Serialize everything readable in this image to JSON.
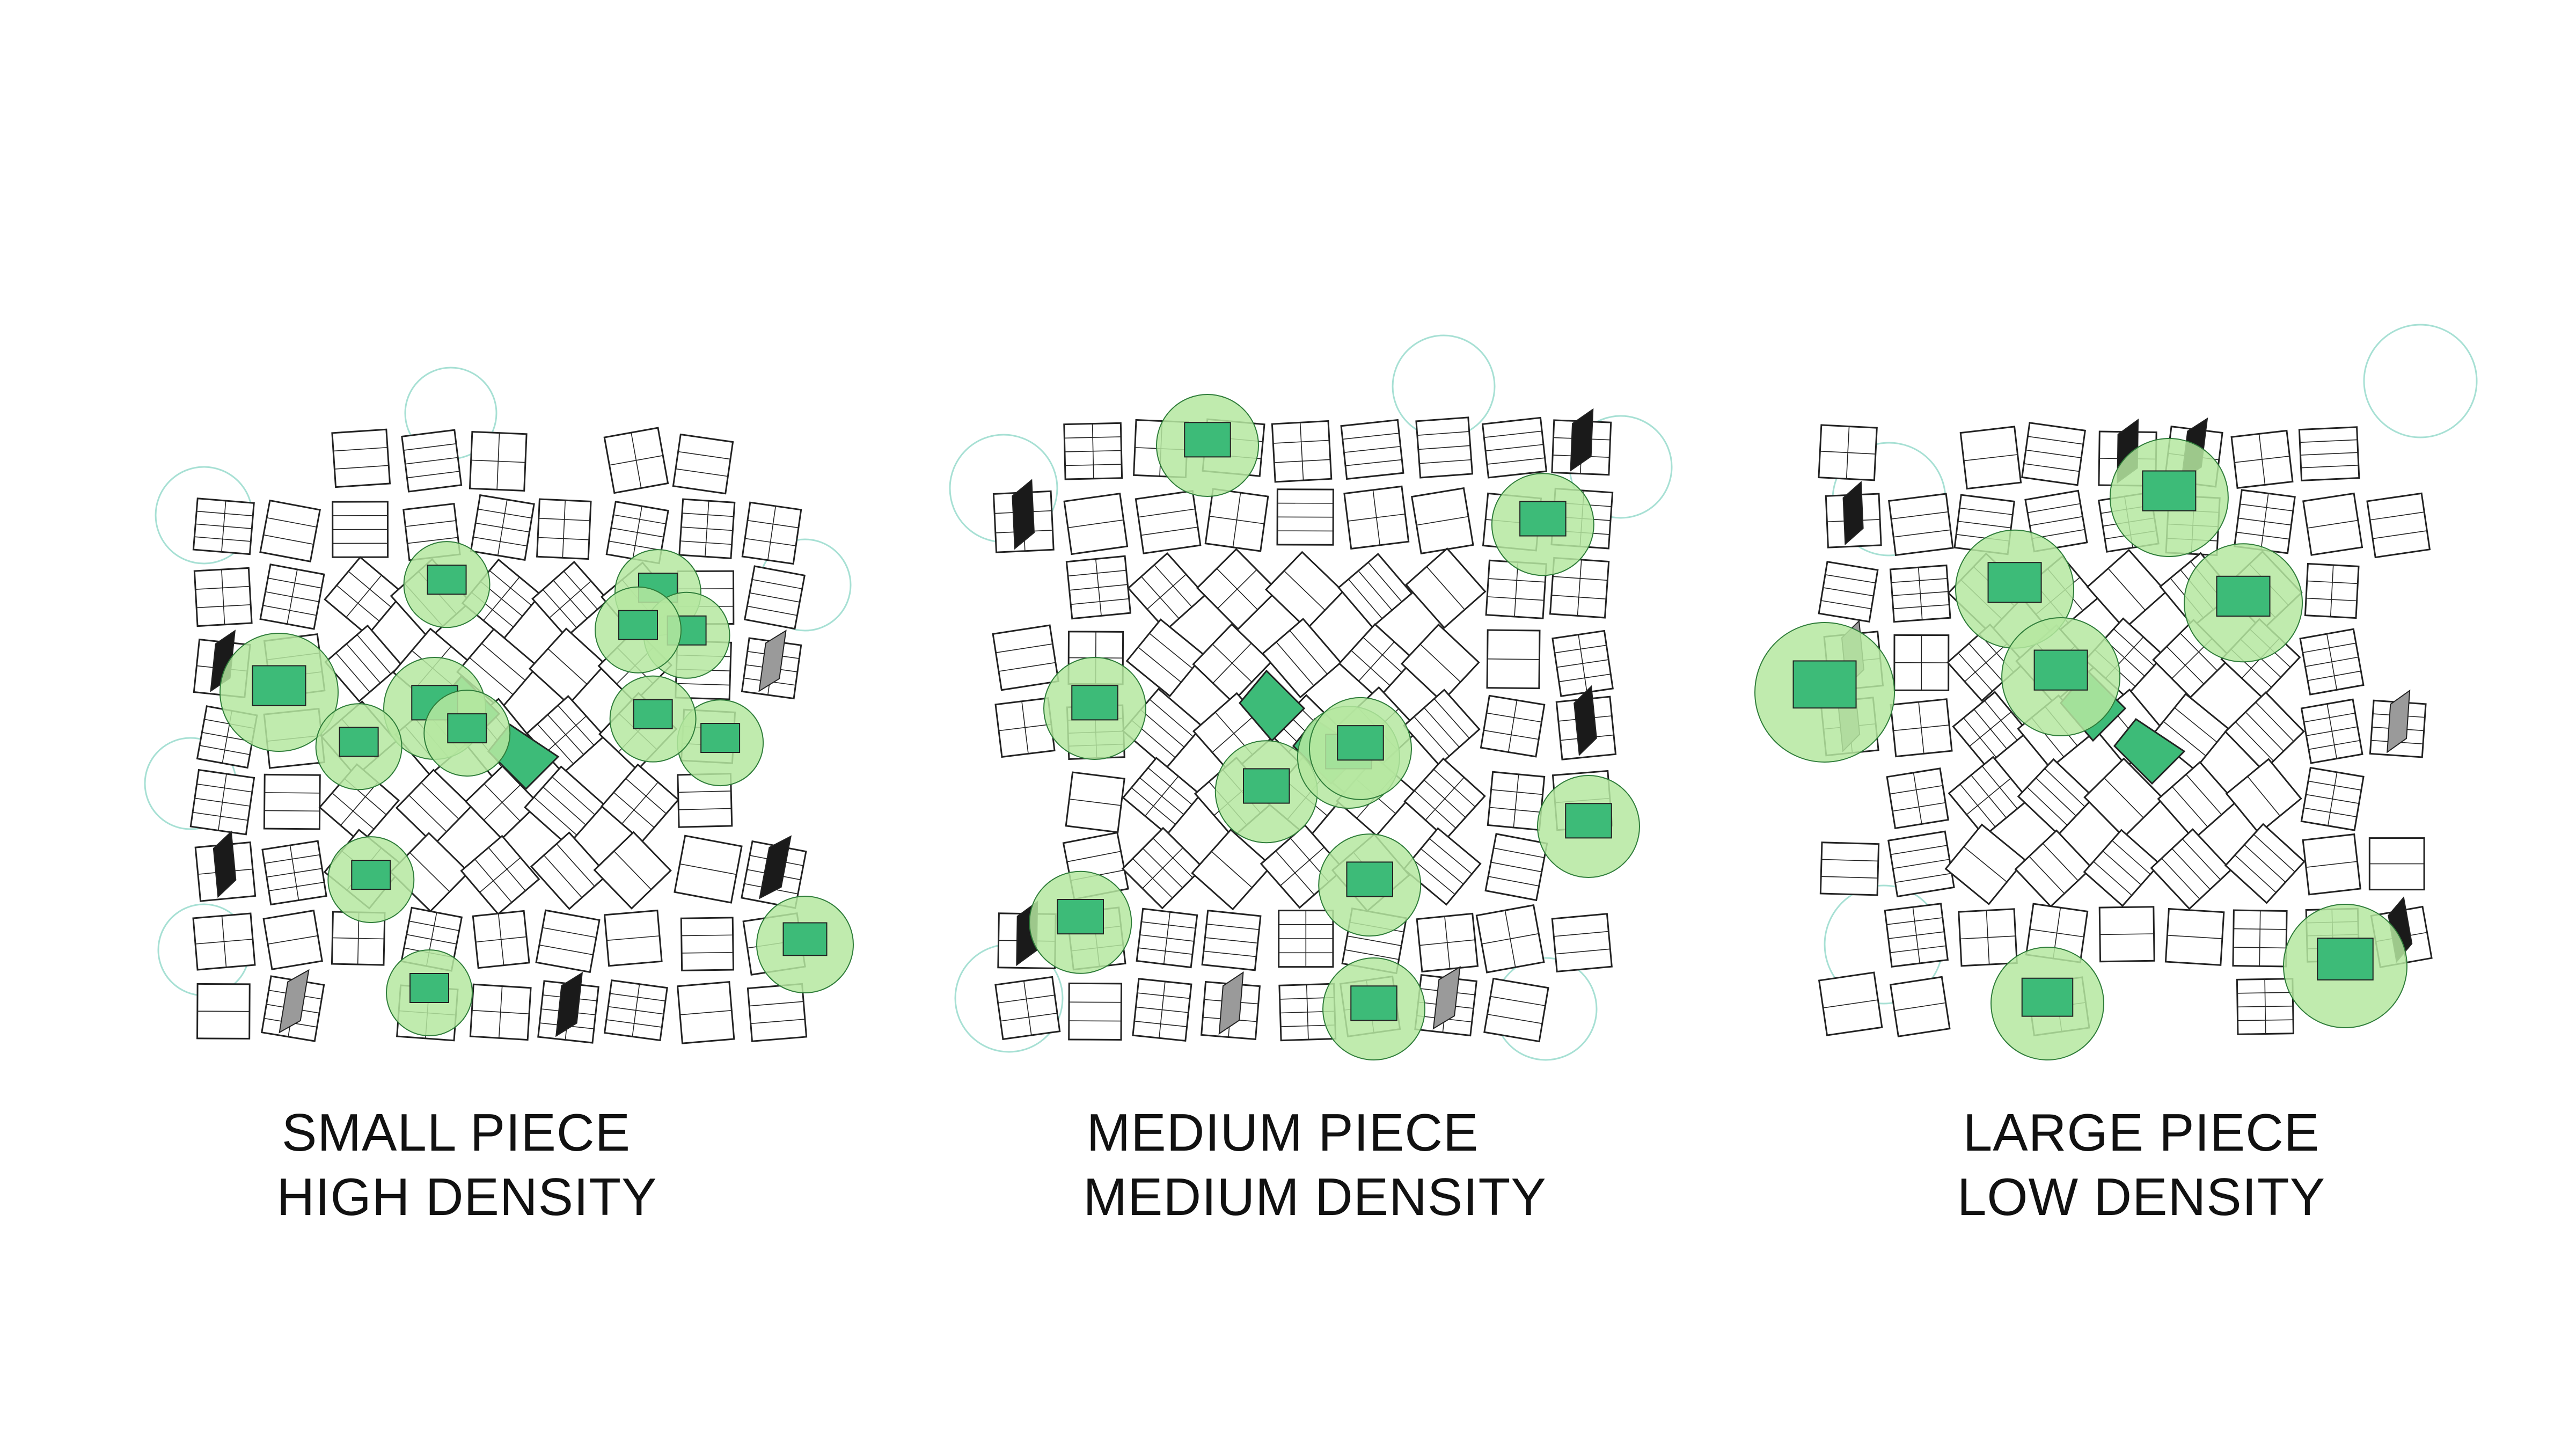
{
  "colors": {
    "block_fill": "#ffffff",
    "block_stroke": "#222222",
    "green_circle": "#b5e7a0",
    "green_core": "#3dbb78",
    "faint_circle": "#a7e0d4",
    "shadow_dark": "#1a1a1a",
    "shadow_mid": "#9a9a9a"
  },
  "panels": [
    {
      "id": "small",
      "caption_line1": "SMALL PIECE",
      "caption_line2": "HIGH DENSITY",
      "green_circle_count": 13,
      "green_circle_size": "small"
    },
    {
      "id": "medium",
      "caption_line1": "MEDIUM PIECE",
      "caption_line2": "MEDIUM DENSITY",
      "green_circle_count": 10,
      "green_circle_size": "medium"
    },
    {
      "id": "large",
      "caption_line1": "LARGE PIECE",
      "caption_line2": "LOW DENSITY",
      "green_circle_count": 7,
      "green_circle_size": "large"
    }
  ]
}
